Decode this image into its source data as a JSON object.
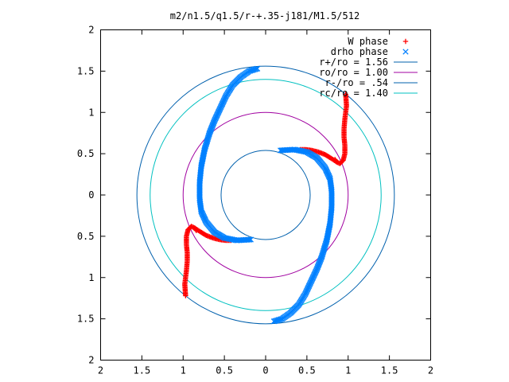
{
  "chart_data": {
    "type": "scatter",
    "title": "m2/n1.5/q1.5/r-+.35-j181/M1.5/512",
    "xlim": [
      -2,
      2
    ],
    "ylim": [
      -2,
      2
    ],
    "x_ticks": [
      "2",
      "1.5",
      "1",
      "0.5",
      "0",
      "0.5",
      "1",
      "1.5",
      "2"
    ],
    "y_ticks": [
      "2",
      "1.5",
      "1",
      "0.5",
      "0",
      "0.5",
      "1",
      "1.5",
      "2"
    ],
    "legend_position": "top-right",
    "grid": false,
    "series": [
      {
        "name": "W phase",
        "marker": "+",
        "color": "#ff0000",
        "arms": [
          [
            [
              0.97,
              1.22
            ],
            [
              0.98,
              1.08
            ],
            [
              0.96,
              0.92
            ],
            [
              0.95,
              0.8
            ],
            [
              0.95,
              0.7
            ],
            [
              0.96,
              0.6
            ],
            [
              0.96,
              0.5
            ],
            [
              0.94,
              0.42
            ],
            [
              0.9,
              0.38
            ],
            [
              0.86,
              0.4
            ],
            [
              0.84,
              0.43
            ]
          ],
          [
            [
              0.86,
              0.4
            ],
            [
              0.8,
              0.44
            ],
            [
              0.72,
              0.49
            ],
            [
              0.64,
              0.52
            ],
            [
              0.56,
              0.54
            ],
            [
              0.48,
              0.55
            ],
            [
              0.42,
              0.55
            ]
          ],
          [
            [
              -0.97,
              -1.22
            ],
            [
              -0.98,
              -1.08
            ],
            [
              -0.96,
              -0.92
            ],
            [
              -0.95,
              -0.8
            ],
            [
              -0.95,
              -0.7
            ],
            [
              -0.96,
              -0.6
            ],
            [
              -0.96,
              -0.5
            ],
            [
              -0.94,
              -0.42
            ],
            [
              -0.9,
              -0.38
            ],
            [
              -0.86,
              -0.4
            ],
            [
              -0.84,
              -0.43
            ]
          ],
          [
            [
              -0.86,
              -0.4
            ],
            [
              -0.8,
              -0.44
            ],
            [
              -0.72,
              -0.49
            ],
            [
              -0.64,
              -0.52
            ],
            [
              -0.56,
              -0.54
            ],
            [
              -0.48,
              -0.55
            ],
            [
              -0.42,
              -0.55
            ]
          ]
        ]
      },
      {
        "name": "drho phase",
        "marker": "x",
        "color": "#0080ff",
        "arms": [
          [
            [
              -0.1,
              1.53
            ],
            [
              -0.2,
              1.5
            ],
            [
              -0.3,
              1.43
            ],
            [
              -0.4,
              1.33
            ],
            [
              -0.48,
              1.2
            ],
            [
              -0.55,
              1.05
            ],
            [
              -0.62,
              0.9
            ],
            [
              -0.68,
              0.75
            ],
            [
              -0.74,
              0.55
            ],
            [
              -0.78,
              0.35
            ],
            [
              -0.8,
              0.15
            ],
            [
              -0.8,
              -0.05
            ],
            [
              -0.78,
              -0.2
            ],
            [
              -0.72,
              -0.33
            ],
            [
              -0.62,
              -0.45
            ],
            [
              -0.5,
              -0.52
            ],
            [
              -0.35,
              -0.55
            ],
            [
              -0.18,
              -0.54
            ]
          ],
          [
            [
              0.1,
              -1.53
            ],
            [
              0.2,
              -1.5
            ],
            [
              0.3,
              -1.43
            ],
            [
              0.4,
              -1.33
            ],
            [
              0.48,
              -1.2
            ],
            [
              0.55,
              -1.05
            ],
            [
              0.62,
              -0.9
            ],
            [
              0.68,
              -0.75
            ],
            [
              0.74,
              -0.55
            ],
            [
              0.78,
              -0.35
            ],
            [
              0.8,
              -0.15
            ],
            [
              0.8,
              0.05
            ],
            [
              0.78,
              0.2
            ],
            [
              0.72,
              0.33
            ],
            [
              0.62,
              0.45
            ],
            [
              0.5,
              0.52
            ],
            [
              0.35,
              0.55
            ],
            [
              0.18,
              0.54
            ]
          ]
        ]
      }
    ],
    "circles": [
      {
        "name": "r+/ro = 1.56",
        "radius": 1.56,
        "color": "#0060ad"
      },
      {
        "name": "ro/ro = 1.00",
        "radius": 1.0,
        "color": "#a000a0"
      },
      {
        "name": "r-/ro = .54",
        "radius": 0.54,
        "color": "#0060ad"
      },
      {
        "name": "rc/ro = 1.40",
        "radius": 1.4,
        "color": "#00c0c0"
      }
    ]
  }
}
